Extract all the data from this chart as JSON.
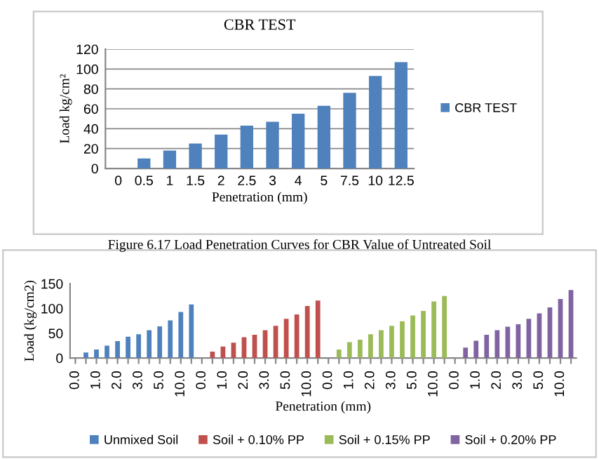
{
  "chart_data": [
    {
      "type": "bar",
      "title": "CBR TEST",
      "xlabel": "Penetration (mm)",
      "ylabel": "Load kg/cm²",
      "categories": [
        "0",
        "0.5",
        "1",
        "1.5",
        "2",
        "2.5",
        "3",
        "4",
        "5",
        "7.5",
        "10",
        "12.5"
      ],
      "series": [
        {
          "name": "CBR TEST",
          "color": "#4f81bd",
          "values": [
            0,
            10,
            18,
            25,
            34,
            43,
            47,
            55,
            63,
            76,
            93,
            107
          ]
        }
      ],
      "ylim": [
        0,
        120
      ],
      "yticks": [
        0,
        20,
        40,
        60,
        80,
        100,
        120
      ],
      "grid": "y",
      "legend": "right",
      "annotations": [
        "Figure 6.17 Load Penetration Curves for CBR Value of Untreated Soil"
      ]
    },
    {
      "type": "bar",
      "xlabel": "Penetration (mm)",
      "ylabel": "Load (kg/cm2)",
      "categories": [
        "0.0",
        null,
        "1.0",
        null,
        "2.0",
        null,
        "3.0",
        null,
        "5.0",
        null,
        "10.0",
        null,
        "0.0",
        null,
        "1.0",
        null,
        "2.0",
        null,
        "3.0",
        null,
        "5.0",
        null,
        "10.0",
        null,
        "0.0",
        null,
        "1.0",
        null,
        "2.0",
        null,
        "3.0",
        null,
        "5.0",
        null,
        "10.0",
        null,
        "0.0",
        null,
        "1.0",
        null,
        "2.0",
        null,
        "3.0",
        null,
        "5.0",
        null,
        "10.0",
        null
      ],
      "series": [
        {
          "name": "Unmixed Soil",
          "color": "#4f81bd",
          "values": [
            0,
            11,
            17,
            25,
            34,
            43,
            48,
            56,
            64,
            76,
            93,
            108,
            null,
            null,
            null,
            null,
            null,
            null,
            null,
            null,
            null,
            null,
            null,
            null,
            null,
            null,
            null,
            null,
            null,
            null,
            null,
            null,
            null,
            null,
            null,
            null,
            null,
            null,
            null,
            null,
            null,
            null,
            null,
            null,
            null,
            null,
            null,
            null
          ]
        },
        {
          "name": "Soil + 0.10% PP",
          "color": "#c0504d",
          "values": [
            null,
            null,
            null,
            null,
            null,
            null,
            null,
            null,
            null,
            null,
            null,
            null,
            0,
            13,
            23,
            31,
            42,
            47,
            56,
            65,
            79,
            88,
            105,
            116,
            null,
            null,
            null,
            null,
            null,
            null,
            null,
            null,
            null,
            null,
            null,
            null,
            null,
            null,
            null,
            null,
            null,
            null,
            null,
            null,
            null,
            null,
            null,
            null
          ]
        },
        {
          "name": "Soil + 0.15% PP",
          "color": "#9bbb59",
          "values": [
            null,
            null,
            null,
            null,
            null,
            null,
            null,
            null,
            null,
            null,
            null,
            null,
            null,
            null,
            null,
            null,
            null,
            null,
            null,
            null,
            null,
            null,
            null,
            null,
            0,
            17,
            32,
            37,
            48,
            56,
            65,
            74,
            86,
            95,
            114,
            125,
            null,
            null,
            null,
            null,
            null,
            null,
            null,
            null,
            null,
            null,
            null,
            null
          ]
        },
        {
          "name": "Soil + 0.20% PP",
          "color": "#8064a2",
          "values": [
            null,
            null,
            null,
            null,
            null,
            null,
            null,
            null,
            null,
            null,
            null,
            null,
            null,
            null,
            null,
            null,
            null,
            null,
            null,
            null,
            null,
            null,
            null,
            null,
            null,
            null,
            null,
            null,
            null,
            null,
            null,
            null,
            null,
            null,
            null,
            null,
            0,
            21,
            35,
            47,
            56,
            63,
            68,
            79,
            90,
            102,
            119,
            137
          ]
        }
      ],
      "ylim": [
        0,
        150
      ],
      "yticks": [
        0,
        50,
        100,
        150
      ],
      "legend": "bottom"
    }
  ]
}
